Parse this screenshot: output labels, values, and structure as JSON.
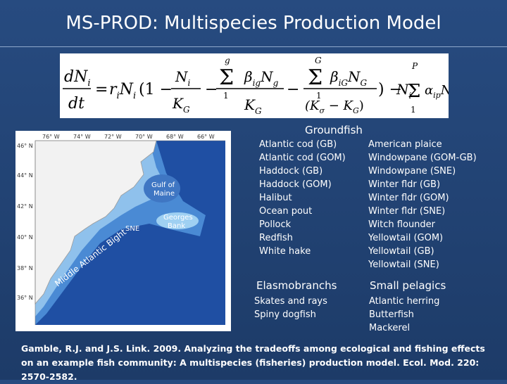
{
  "title": "MS-PROD: Multispecies Production Model",
  "equation": {
    "lhs_num": "dN",
    "lhs_sub": "i",
    "lhs_den": "dt"
  },
  "map": {
    "longitudes": [
      "76° W",
      "74° W",
      "72° W",
      "70° W",
      "68° W",
      "66° W"
    ],
    "latitudes": [
      "46° N",
      "44° N",
      "42° N",
      "40° N",
      "38° N",
      "36° N"
    ],
    "gulf_label_1": "Gulf of",
    "gulf_label_2": "Maine",
    "georges_label_1": "Georges",
    "georges_label_2": "Bank",
    "sne_label": "SNE",
    "mab_label": "Middle Atlantic Bight"
  },
  "groundfish": {
    "title": "Groundfish",
    "col1": [
      "Atlantic cod (GB)",
      "Atlantic cod (GOM)",
      "Haddock (GB)",
      "Haddock (GOM)",
      "Halibut",
      "Ocean pout",
      "Pollock",
      "Redfish",
      "White hake"
    ],
    "col2": [
      "American plaice",
      "Windowpane (GOM-GB)",
      "Windowpane (SNE)",
      "Winter fldr (GB)",
      "Winter fldr (GOM)",
      "Winter fldr (SNE)",
      "Witch flounder",
      "Yellowtail (GOM)",
      "Yellowtail (GB)",
      "Yellowtail (SNE)"
    ]
  },
  "elasmobranchs": {
    "title": "Elasmobranchs",
    "items": [
      "Skates and rays",
      "Spiny dogfish"
    ]
  },
  "small_pelagics": {
    "title": "Small pelagics",
    "items": [
      "Atlantic herring",
      "Butterfish",
      "Mackerel"
    ]
  },
  "citation": "Gamble, R.J. and J.S. Link. 2009. Analyzing the tradeoffs among ecological and fishing effects on an example fish community: A multispecies (fisheries) production model. Ecol. Mod. 220: 2570-2582."
}
